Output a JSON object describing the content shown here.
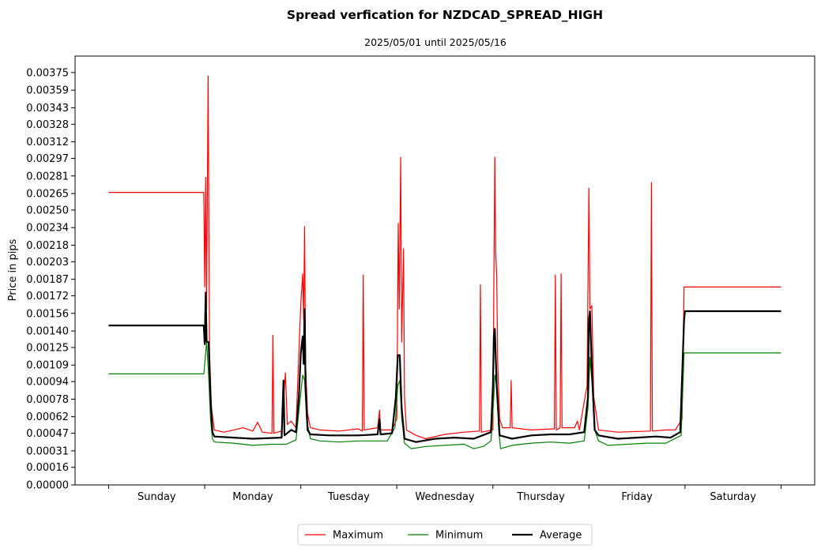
{
  "chart_data": {
    "type": "line",
    "title": "Spread verfication for NZDCAD_SPREAD_HIGH",
    "subtitle": "2025/05/01 until 2025/05/16",
    "xlabel": "",
    "ylabel": "Price in pips",
    "ylim": [
      0,
      0.0039
    ],
    "yticks": [
      "0.00000",
      "0.00016",
      "0.00031",
      "0.00047",
      "0.00062",
      "0.00078",
      "0.00094",
      "0.00109",
      "0.00125",
      "0.00140",
      "0.00156",
      "0.00172",
      "0.00187",
      "0.00203",
      "0.00218",
      "0.00234",
      "0.00250",
      "0.00265",
      "0.00281",
      "0.00297",
      "0.00312",
      "0.00328",
      "0.00343",
      "0.00359",
      "0.00375"
    ],
    "xlim": [
      -0.35,
      7.35
    ],
    "categories": [
      "Sunday",
      "Monday",
      "Tuesday",
      "Wednesday",
      "Thursday",
      "Friday",
      "Saturday"
    ],
    "legend_position": "bottom-center",
    "grid": false,
    "series": [
      {
        "name": "Maximum",
        "color": "#ff0000",
        "width": 1.2,
        "points": [
          [
            0,
            0.00266
          ],
          [
            0.99,
            0.00266
          ],
          [
            1.0,
            0.0018
          ],
          [
            1.01,
            0.0028
          ],
          [
            1.02,
            0.0016
          ],
          [
            1.035,
            0.00372
          ],
          [
            1.05,
            0.0012
          ],
          [
            1.07,
            0.0007
          ],
          [
            1.1,
            0.0005
          ],
          [
            1.2,
            0.00048
          ],
          [
            1.3,
            0.0005
          ],
          [
            1.4,
            0.00052
          ],
          [
            1.5,
            0.00049
          ],
          [
            1.55,
            0.00057
          ],
          [
            1.6,
            0.00048
          ],
          [
            1.7,
            0.00047
          ],
          [
            1.71,
            0.00136
          ],
          [
            1.72,
            0.00047
          ],
          [
            1.8,
            0.00049
          ],
          [
            1.84,
            0.00102
          ],
          [
            1.86,
            0.00055
          ],
          [
            1.9,
            0.00058
          ],
          [
            1.95,
            0.00052
          ],
          [
            1.98,
            0.0012
          ],
          [
            2.0,
            0.00165
          ],
          [
            2.02,
            0.00192
          ],
          [
            2.03,
            0.0015
          ],
          [
            2.04,
            0.00235
          ],
          [
            2.05,
            0.0011
          ],
          [
            2.07,
            0.00065
          ],
          [
            2.1,
            0.00052
          ],
          [
            2.2,
            0.0005
          ],
          [
            2.4,
            0.00049
          ],
          [
            2.6,
            0.00051
          ],
          [
            2.64,
            0.00049
          ],
          [
            2.65,
            0.00191
          ],
          [
            2.66,
            0.0005
          ],
          [
            2.8,
            0.00052
          ],
          [
            2.82,
            0.00068
          ],
          [
            2.83,
            0.0005
          ],
          [
            2.95,
            0.0005
          ],
          [
            3.0,
            0.0006
          ],
          [
            3.01,
            0.00178
          ],
          [
            3.015,
            0.00238
          ],
          [
            3.025,
            0.0016
          ],
          [
            3.04,
            0.00298
          ],
          [
            3.05,
            0.0013
          ],
          [
            3.07,
            0.00215
          ],
          [
            3.08,
            0.0008
          ],
          [
            3.1,
            0.0005
          ],
          [
            3.2,
            0.00045
          ],
          [
            3.3,
            0.00042
          ],
          [
            3.5,
            0.00046
          ],
          [
            3.7,
            0.00048
          ],
          [
            3.86,
            0.00049
          ],
          [
            3.87,
            0.00182
          ],
          [
            3.88,
            0.00048
          ],
          [
            4.0,
            0.0005
          ],
          [
            4.01,
            0.00185
          ],
          [
            4.015,
            0.00235
          ],
          [
            4.02,
            0.00298
          ],
          [
            4.03,
            0.0021
          ],
          [
            4.04,
            0.0019
          ],
          [
            4.05,
            0.0011
          ],
          [
            4.07,
            0.0006
          ],
          [
            4.1,
            0.00052
          ],
          [
            4.18,
            0.00052
          ],
          [
            4.19,
            0.00095
          ],
          [
            4.2,
            0.00052
          ],
          [
            4.4,
            0.0005
          ],
          [
            4.64,
            0.00051
          ],
          [
            4.65,
            0.00191
          ],
          [
            4.66,
            0.0005
          ],
          [
            4.7,
            0.00052
          ],
          [
            4.71,
            0.00192
          ],
          [
            4.72,
            0.00052
          ],
          [
            4.85,
            0.00052
          ],
          [
            4.88,
            0.00058
          ],
          [
            4.9,
            0.0005
          ],
          [
            4.98,
            0.0009
          ],
          [
            5.0,
            0.0027
          ],
          [
            5.01,
            0.0016
          ],
          [
            5.03,
            0.00163
          ],
          [
            5.05,
            0.0008
          ],
          [
            5.1,
            0.0005
          ],
          [
            5.3,
            0.00048
          ],
          [
            5.64,
            0.00049
          ],
          [
            5.65,
            0.00275
          ],
          [
            5.66,
            0.00049
          ],
          [
            5.8,
            0.0005
          ],
          [
            5.9,
            0.0005
          ],
          [
            5.97,
            0.0006
          ],
          [
            5.99,
            0.0018
          ],
          [
            7.0,
            0.0018
          ]
        ]
      },
      {
        "name": "Minimum",
        "color": "#008000",
        "width": 1.2,
        "points": [
          [
            0,
            0.00101
          ],
          [
            0.99,
            0.00101
          ],
          [
            1.0,
            0.0011
          ],
          [
            1.02,
            0.0013
          ],
          [
            1.04,
            0.001
          ],
          [
            1.06,
            0.0006
          ],
          [
            1.08,
            0.00042
          ],
          [
            1.1,
            0.00039
          ],
          [
            1.3,
            0.00038
          ],
          [
            1.5,
            0.00036
          ],
          [
            1.7,
            0.00037
          ],
          [
            1.85,
            0.00037
          ],
          [
            1.95,
            0.00041
          ],
          [
            1.99,
            0.00075
          ],
          [
            2.02,
            0.001
          ],
          [
            2.04,
            0.00095
          ],
          [
            2.06,
            0.0006
          ],
          [
            2.1,
            0.00042
          ],
          [
            2.2,
            0.0004
          ],
          [
            2.4,
            0.00039
          ],
          [
            2.6,
            0.0004
          ],
          [
            2.9,
            0.0004
          ],
          [
            2.98,
            0.00052
          ],
          [
            3.01,
            0.0009
          ],
          [
            3.03,
            0.00095
          ],
          [
            3.05,
            0.00062
          ],
          [
            3.08,
            0.00038
          ],
          [
            3.15,
            0.00033
          ],
          [
            3.3,
            0.00035
          ],
          [
            3.5,
            0.00036
          ],
          [
            3.7,
            0.00037
          ],
          [
            3.8,
            0.00033
          ],
          [
            3.9,
            0.00035
          ],
          [
            3.98,
            0.0004
          ],
          [
            4.01,
            0.0008
          ],
          [
            4.02,
            0.001
          ],
          [
            4.04,
            0.0009
          ],
          [
            4.06,
            0.0005
          ],
          [
            4.08,
            0.00033
          ],
          [
            4.2,
            0.00036
          ],
          [
            4.4,
            0.00038
          ],
          [
            4.6,
            0.00039
          ],
          [
            4.8,
            0.00038
          ],
          [
            4.95,
            0.0004
          ],
          [
            4.99,
            0.0007
          ],
          [
            5.01,
            0.00116
          ],
          [
            5.03,
            0.00095
          ],
          [
            5.06,
            0.0005
          ],
          [
            5.1,
            0.0004
          ],
          [
            5.2,
            0.00036
          ],
          [
            5.4,
            0.00037
          ],
          [
            5.6,
            0.00038
          ],
          [
            5.8,
            0.00038
          ],
          [
            5.96,
            0.00045
          ],
          [
            5.99,
            0.0012
          ],
          [
            7.0,
            0.0012
          ]
        ]
      },
      {
        "name": "Average",
        "color": "#000000",
        "width": 2.2,
        "points": [
          [
            0,
            0.00145
          ],
          [
            0.99,
            0.00145
          ],
          [
            1.0,
            0.00128
          ],
          [
            1.01,
            0.00175
          ],
          [
            1.02,
            0.0013
          ],
          [
            1.04,
            0.0013
          ],
          [
            1.06,
            0.0008
          ],
          [
            1.08,
            0.00048
          ],
          [
            1.1,
            0.00044
          ],
          [
            1.3,
            0.00043
          ],
          [
            1.5,
            0.00042
          ],
          [
            1.8,
            0.00043
          ],
          [
            1.82,
            0.00095
          ],
          [
            1.83,
            0.00045
          ],
          [
            1.9,
            0.0005
          ],
          [
            1.95,
            0.00048
          ],
          [
            1.98,
            0.0008
          ],
          [
            2.0,
            0.0012
          ],
          [
            2.02,
            0.00135
          ],
          [
            2.03,
            0.0011
          ],
          [
            2.04,
            0.0016
          ],
          [
            2.05,
            0.0009
          ],
          [
            2.07,
            0.0005
          ],
          [
            2.1,
            0.00046
          ],
          [
            2.3,
            0.00045
          ],
          [
            2.6,
            0.00045
          ],
          [
            2.8,
            0.00046
          ],
          [
            2.82,
            0.0006
          ],
          [
            2.83,
            0.00046
          ],
          [
            2.95,
            0.00047
          ],
          [
            2.99,
            0.0008
          ],
          [
            3.01,
            0.00118
          ],
          [
            3.03,
            0.00118
          ],
          [
            3.05,
            0.0007
          ],
          [
            3.08,
            0.00042
          ],
          [
            3.2,
            0.00039
          ],
          [
            3.4,
            0.00042
          ],
          [
            3.6,
            0.00043
          ],
          [
            3.8,
            0.00042
          ],
          [
            3.98,
            0.00048
          ],
          [
            4.0,
            0.0009
          ],
          [
            4.01,
            0.00135
          ],
          [
            4.02,
            0.00142
          ],
          [
            4.04,
            0.0009
          ],
          [
            4.07,
            0.00045
          ],
          [
            4.2,
            0.00042
          ],
          [
            4.4,
            0.00045
          ],
          [
            4.6,
            0.00046
          ],
          [
            4.8,
            0.00046
          ],
          [
            4.95,
            0.00048
          ],
          [
            4.99,
            0.0008
          ],
          [
            5.0,
            0.0015
          ],
          [
            5.01,
            0.00158
          ],
          [
            5.03,
            0.00105
          ],
          [
            5.06,
            0.0005
          ],
          [
            5.1,
            0.00045
          ],
          [
            5.3,
            0.00042
          ],
          [
            5.5,
            0.00043
          ],
          [
            5.7,
            0.00044
          ],
          [
            5.85,
            0.00043
          ],
          [
            5.95,
            0.00048
          ],
          [
            5.99,
            0.0015
          ],
          [
            6.0,
            0.00158
          ],
          [
            7.0,
            0.00158
          ]
        ]
      }
    ]
  }
}
